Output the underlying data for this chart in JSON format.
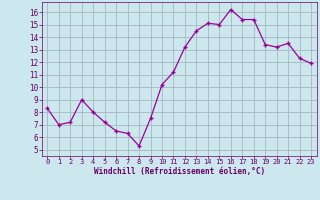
{
  "x": [
    0,
    1,
    2,
    3,
    4,
    5,
    6,
    7,
    8,
    9,
    10,
    11,
    12,
    13,
    14,
    15,
    16,
    17,
    18,
    19,
    20,
    21,
    22,
    23
  ],
  "y": [
    8.3,
    7.0,
    7.2,
    9.0,
    8.0,
    7.2,
    6.5,
    6.3,
    5.3,
    7.5,
    10.2,
    11.2,
    13.2,
    14.5,
    15.1,
    15.0,
    16.2,
    15.4,
    15.4,
    13.4,
    13.2,
    13.5,
    12.3,
    11.9
  ],
  "line_color": "#990099",
  "marker": "P",
  "marker_size": 2.5,
  "bg_color": "#cce8ee",
  "grid_color": "#aabfc4",
  "xlabel": "Windchill (Refroidissement éolien,°C)",
  "xlabel_color": "#660066",
  "tick_color": "#660066",
  "ylim": [
    4.5,
    16.8
  ],
  "xlim": [
    -0.5,
    23.5
  ],
  "yticks": [
    5,
    6,
    7,
    8,
    9,
    10,
    11,
    12,
    13,
    14,
    15,
    16
  ],
  "xticks": [
    0,
    1,
    2,
    3,
    4,
    5,
    6,
    7,
    8,
    9,
    10,
    11,
    12,
    13,
    14,
    15,
    16,
    17,
    18,
    19,
    20,
    21,
    22,
    23
  ]
}
